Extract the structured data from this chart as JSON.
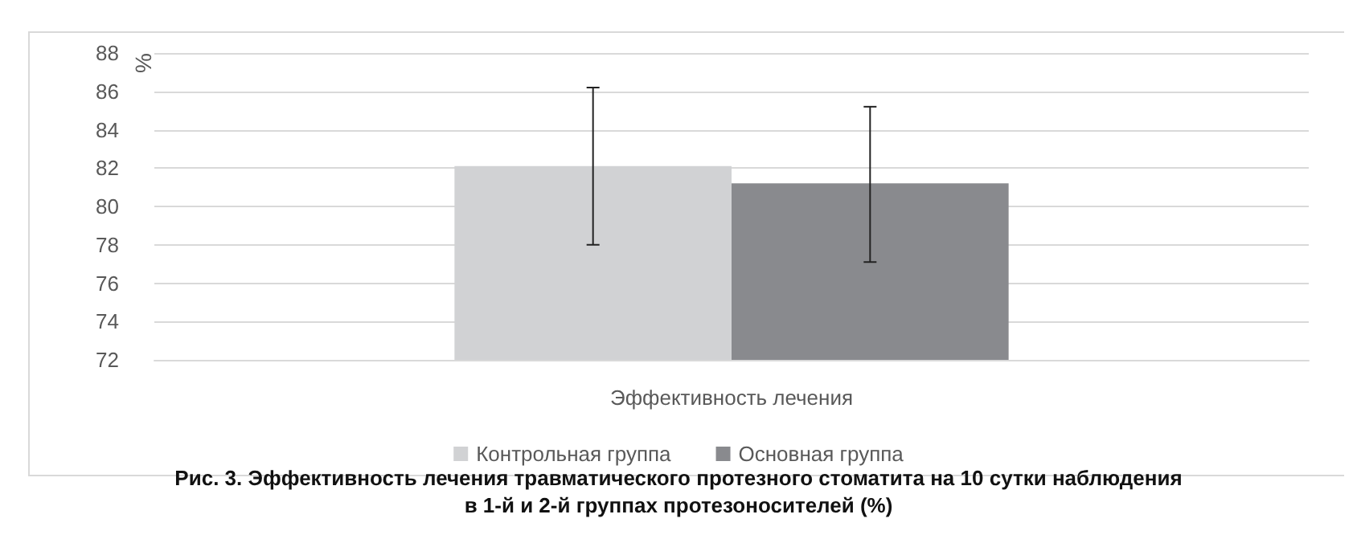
{
  "chart_data": {
    "type": "bar",
    "title": "Рис. 3. Эффективность лечения травматического протезного стоматита на 10 сутки наблюдения\nв 1-й и 2-й группах протезоносителей (%)",
    "ylabel": "%",
    "categories": [
      "Эффективность лечения"
    ],
    "series": [
      {
        "name": "Контрольная группа",
        "color": "#d1d2d4",
        "values": [
          82.1
        ],
        "errors": [
          [
            78.0,
            86.2
          ]
        ]
      },
      {
        "name": "Основная группа",
        "color": "#898a8e",
        "values": [
          81.2
        ],
        "errors": [
          [
            77.1,
            85.2
          ]
        ]
      }
    ],
    "ylim": [
      72,
      88
    ],
    "yticks": [
      72,
      74,
      76,
      78,
      80,
      82,
      84,
      86,
      88
    ],
    "grid": "y",
    "legend": "bottom"
  }
}
